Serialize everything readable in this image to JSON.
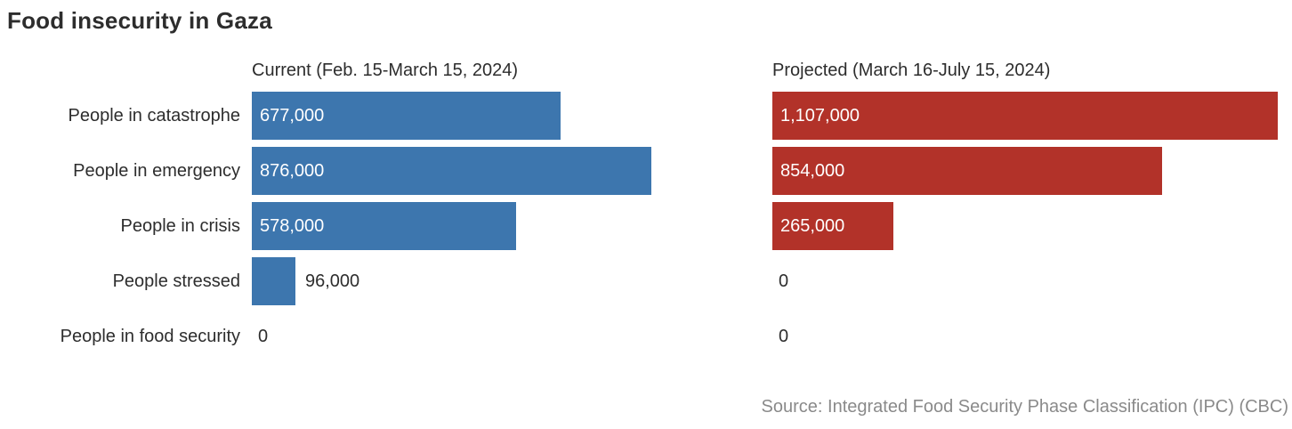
{
  "chart_data": {
    "type": "bar",
    "orientation": "horizontal",
    "title": "Food insecurity in Gaza",
    "categories": [
      "People in catastrophe",
      "People in emergency",
      "People in crisis",
      "People stressed",
      "People in food security"
    ],
    "series": [
      {
        "name": "Current (Feb. 15-March 15, 2024)",
        "values": [
          677000,
          876000,
          578000,
          96000,
          0
        ],
        "value_labels": [
          "677,000",
          "876,000",
          "578,000",
          "96,000",
          "0"
        ],
        "color": "#3d76ae"
      },
      {
        "name": "Projected (March 16-July 15, 2024)",
        "values": [
          1107000,
          854000,
          265000,
          0,
          0
        ],
        "value_labels": [
          "1,107,000",
          "854,000",
          "265,000",
          "0",
          "0"
        ],
        "color": "#b23229"
      }
    ],
    "xlim": [
      0,
      1107000
    ],
    "grid": false,
    "legend_position": "column-headers",
    "source": "Source: Integrated Food Security Phase Classification (IPC) (CBC)",
    "colors": {
      "bar_current": "#3d76ae",
      "bar_projected": "#b23229",
      "text_dark": "#2d2d2d",
      "text_light": "#ffffff",
      "source_text": "#8a8a8a"
    }
  }
}
